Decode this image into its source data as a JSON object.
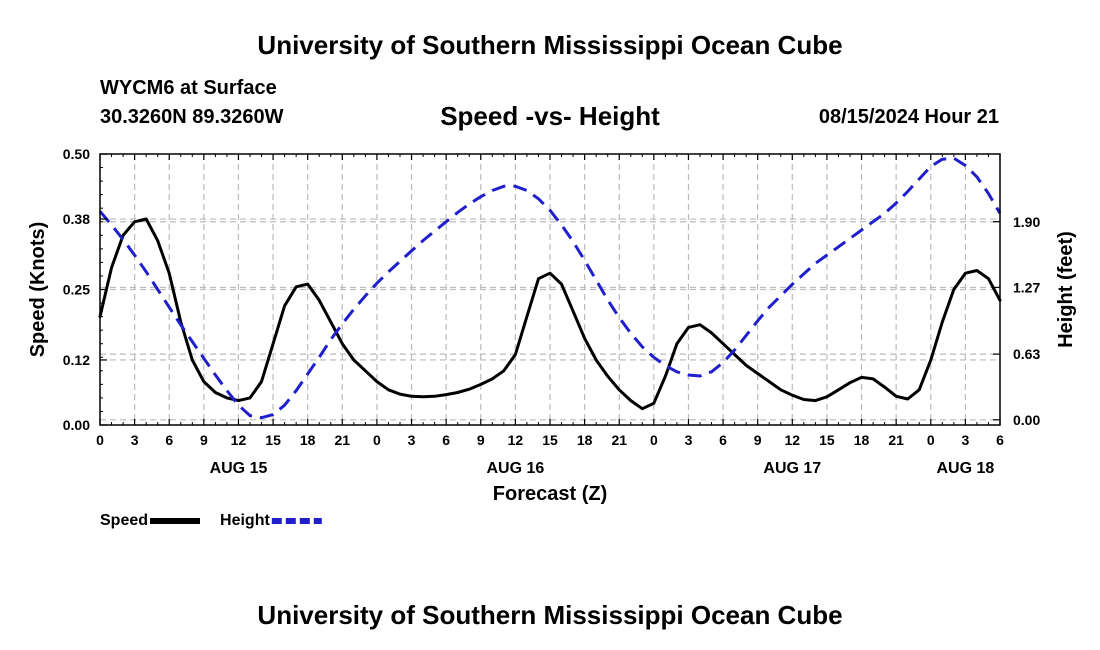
{
  "header": {
    "title": "University of Southern Mississippi Ocean Cube",
    "station": "WYCM6 at Surface",
    "coordinates": "30.3260N  89.3260W",
    "subtitle": "Speed -vs- Height",
    "datetime": "08/15/2024 Hour 21"
  },
  "footer": {
    "title": "University of Southern Mississippi Ocean Cube"
  },
  "chart_data": {
    "type": "line",
    "title": "Speed -vs- Height",
    "xlabel": "Forecast (Z)",
    "ylabel": "Speed (Knots)",
    "y2label": "Height (feet)",
    "xlim": [
      0,
      78
    ],
    "ylim": [
      0,
      0.5
    ],
    "y2lim": [
      -0.05,
      2.55
    ],
    "grid": true,
    "x_tick_hours": [
      0,
      3,
      6,
      9,
      12,
      15,
      18,
      21,
      24,
      27,
      30,
      33,
      36,
      39,
      42,
      45,
      48,
      51,
      54,
      57,
      60,
      63,
      66,
      69,
      72,
      75,
      78
    ],
    "x_tick_labels": [
      "0",
      "3",
      "6",
      "9",
      "12",
      "15",
      "18",
      "21",
      "0",
      "3",
      "6",
      "9",
      "12",
      "15",
      "18",
      "21",
      "0",
      "3",
      "6",
      "9",
      "12",
      "15",
      "18",
      "21",
      "0",
      "3",
      "6"
    ],
    "date_labels": [
      {
        "hour": 12,
        "label": "AUG 15"
      },
      {
        "hour": 36,
        "label": "AUG 16"
      },
      {
        "hour": 60,
        "label": "AUG 17"
      },
      {
        "hour": 75,
        "label": "AUG 18"
      }
    ],
    "y_ticks": [
      0.0,
      0.12,
      0.25,
      0.38,
      0.5
    ],
    "y_tick_labels": [
      "0.00",
      "0.12",
      "0.25",
      "0.38",
      "0.50"
    ],
    "y2_ticks": [
      0.0,
      0.63,
      1.27,
      1.9
    ],
    "y2_tick_labels": [
      "0.00",
      "0.63",
      "1.27",
      "1.90"
    ],
    "legend": [
      {
        "name": "Speed",
        "color": "#000000",
        "style": "solid"
      },
      {
        "name": "Height",
        "color": "#1f1fcc",
        "style": "dashed"
      }
    ],
    "series": [
      {
        "name": "Speed",
        "axis": "left",
        "color": "#000000",
        "x": [
          0,
          1,
          2,
          3,
          4,
          5,
          6,
          7,
          8,
          9,
          10,
          11,
          12,
          13,
          14,
          15,
          16,
          17,
          18,
          19,
          20,
          21,
          22,
          23,
          24,
          25,
          26,
          27,
          28,
          29,
          30,
          31,
          32,
          33,
          34,
          35,
          36,
          37,
          38,
          39,
          40,
          41,
          42,
          43,
          44,
          45,
          46,
          47,
          48,
          49,
          50,
          51,
          52,
          53,
          54,
          55,
          56,
          57,
          58,
          59,
          60,
          61,
          62,
          63,
          64,
          65,
          66,
          67,
          68,
          69,
          70,
          71,
          72,
          73,
          74,
          75,
          76,
          77,
          78
        ],
        "values": [
          0.2,
          0.29,
          0.35,
          0.375,
          0.38,
          0.34,
          0.28,
          0.19,
          0.12,
          0.08,
          0.06,
          0.05,
          0.045,
          0.05,
          0.08,
          0.15,
          0.22,
          0.255,
          0.26,
          0.23,
          0.19,
          0.15,
          0.12,
          0.1,
          0.08,
          0.065,
          0.057,
          0.053,
          0.052,
          0.053,
          0.056,
          0.06,
          0.066,
          0.075,
          0.085,
          0.1,
          0.13,
          0.2,
          0.27,
          0.28,
          0.26,
          0.21,
          0.16,
          0.12,
          0.09,
          0.065,
          0.045,
          0.03,
          0.04,
          0.09,
          0.15,
          0.18,
          0.185,
          0.17,
          0.15,
          0.13,
          0.11,
          0.095,
          0.08,
          0.065,
          0.055,
          0.047,
          0.045,
          0.052,
          0.065,
          0.078,
          0.088,
          0.085,
          0.07,
          0.053,
          0.048,
          0.065,
          0.12,
          0.19,
          0.25,
          0.28,
          0.285,
          0.27,
          0.23
        ]
      },
      {
        "name": "Height",
        "axis": "right",
        "color": "#1f1fcc",
        "x": [
          0,
          1,
          2,
          3,
          4,
          5,
          6,
          7,
          8,
          9,
          10,
          11,
          12,
          13,
          14,
          15,
          16,
          17,
          18,
          19,
          20,
          21,
          22,
          23,
          24,
          25,
          26,
          27,
          28,
          29,
          30,
          31,
          32,
          33,
          34,
          35,
          36,
          37,
          38,
          39,
          40,
          41,
          42,
          43,
          44,
          45,
          46,
          47,
          48,
          49,
          50,
          51,
          52,
          53,
          54,
          55,
          56,
          57,
          58,
          59,
          60,
          61,
          62,
          63,
          64,
          65,
          66,
          67,
          68,
          69,
          70,
          71,
          72,
          73,
          74,
          75,
          76,
          77,
          78
        ],
        "values": [
          2.0,
          1.87,
          1.73,
          1.58,
          1.42,
          1.25,
          1.08,
          0.91,
          0.75,
          0.59,
          0.43,
          0.28,
          0.14,
          0.04,
          0.02,
          0.05,
          0.14,
          0.28,
          0.44,
          0.6,
          0.77,
          0.92,
          1.06,
          1.19,
          1.31,
          1.42,
          1.52,
          1.62,
          1.72,
          1.81,
          1.9,
          1.99,
          2.07,
          2.14,
          2.2,
          2.24,
          2.24,
          2.2,
          2.12,
          2.01,
          1.87,
          1.71,
          1.53,
          1.34,
          1.15,
          0.98,
          0.83,
          0.7,
          0.6,
          0.52,
          0.46,
          0.43,
          0.42,
          0.46,
          0.55,
          0.67,
          0.81,
          0.95,
          1.08,
          1.19,
          1.3,
          1.4,
          1.5,
          1.58,
          1.66,
          1.74,
          1.82,
          1.9,
          1.98,
          2.08,
          2.19,
          2.31,
          2.43,
          2.5,
          2.51,
          2.44,
          2.33,
          2.17,
          1.98
        ]
      }
    ]
  }
}
